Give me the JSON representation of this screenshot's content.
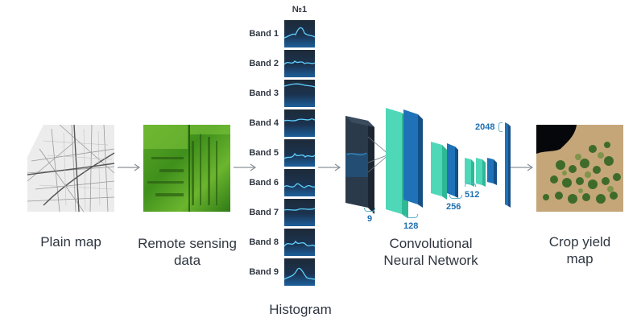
{
  "diagram": {
    "histogram_header": "№1",
    "captions": {
      "plain_map": "Plain map",
      "remote_sensing_line1": "Remote sensing",
      "remote_sensing_line2": "data",
      "histogram": "Histogram",
      "cnn_line1": "Convolutional",
      "cnn_line2": "Neural Network",
      "crop_yield_line1": "Crop yield",
      "crop_yield_line2": "map"
    },
    "bands": [
      "Band 1",
      "Band 2",
      "Band 3",
      "Band 4",
      "Band 5",
      "Band 6",
      "Band 7",
      "Band 8",
      "Band 9"
    ],
    "layer_sizes": {
      "input": "9",
      "conv1": "128",
      "conv2": "256",
      "conv3": "512",
      "fc": "2048"
    },
    "colors": {
      "dark_block": "#2b3a4a",
      "teal_block": "#4fd8b8",
      "blue_block": "#1f72b8",
      "label_blue": "#1f6fb0",
      "arrow": "#8a9099"
    }
  }
}
